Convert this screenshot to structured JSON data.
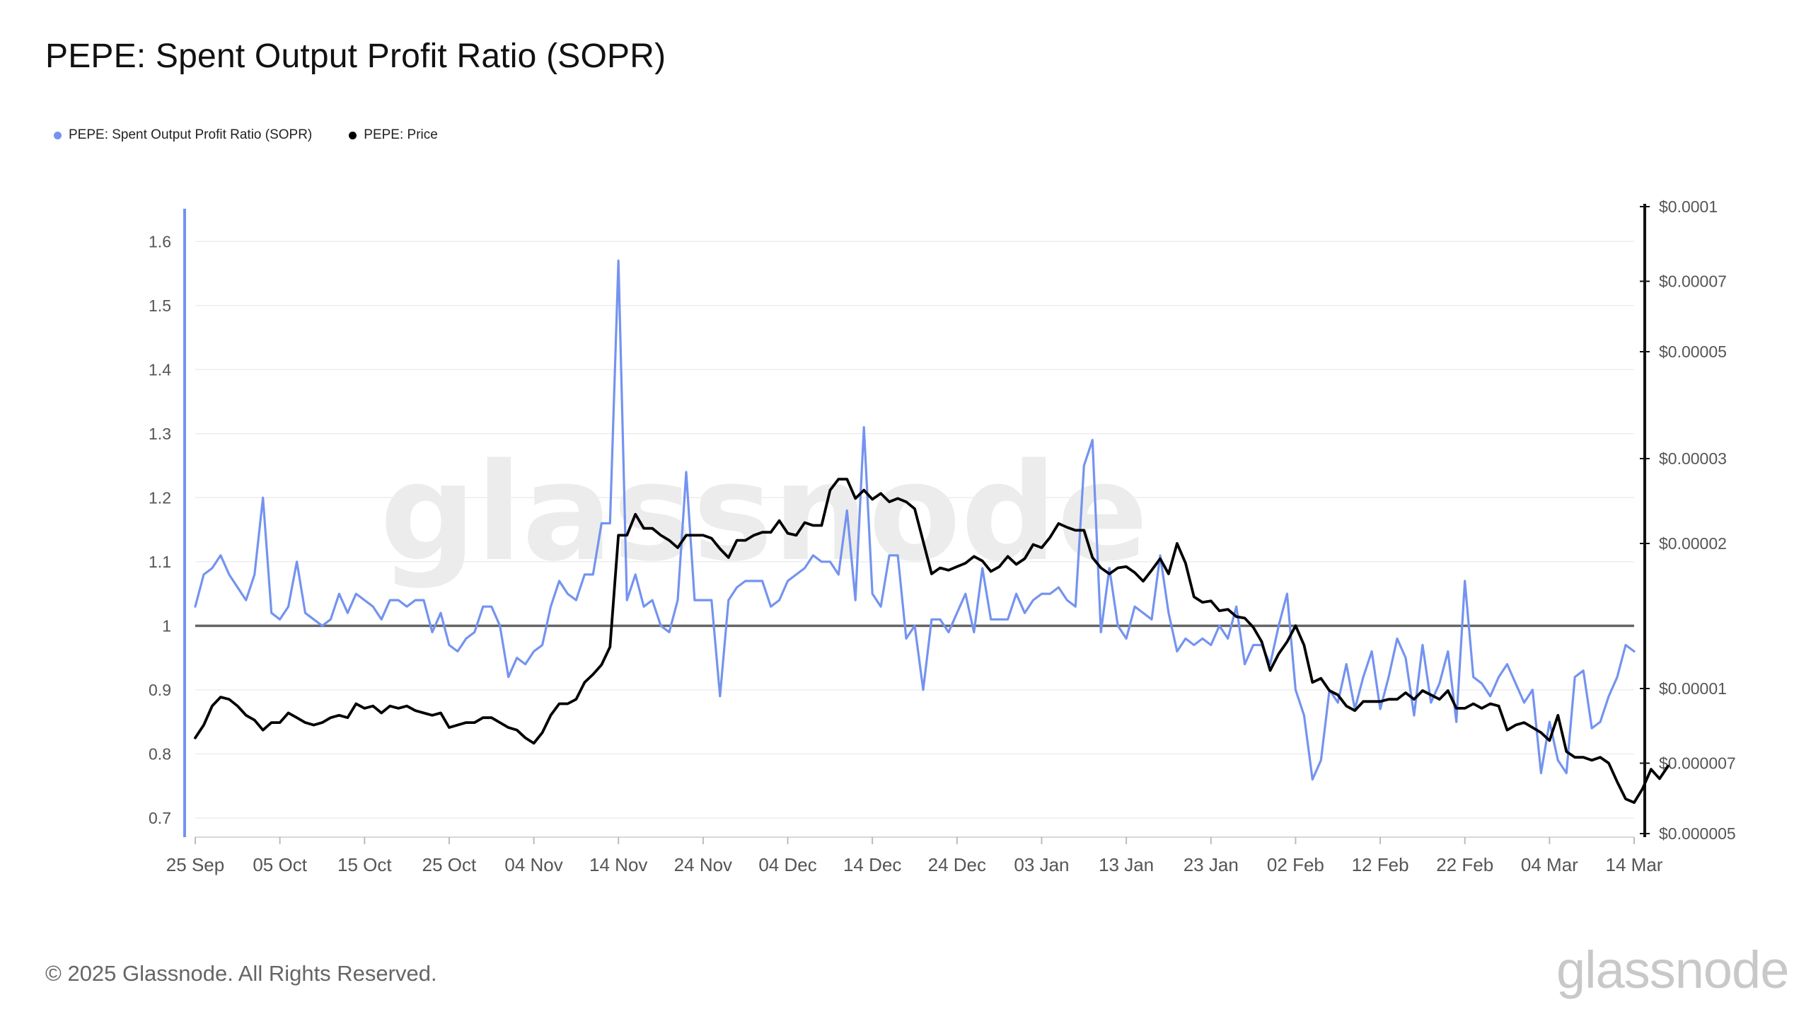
{
  "title": "PEPE: Spent Output Profit Ratio (SOPR)",
  "legend": [
    {
      "label": "PEPE: Spent Output Profit Ratio (SOPR)",
      "color": "#7493f0"
    },
    {
      "label": "PEPE: Price",
      "color": "#000000"
    }
  ],
  "footer": "© 2025 Glassnode. All Rights Reserved.",
  "brand": "glassnode",
  "watermark": "glassnode",
  "chart_data": {
    "type": "line",
    "x_start": "2024-09-25",
    "x_tick_labels": [
      "25 Sep",
      "05 Oct",
      "15 Oct",
      "25 Oct",
      "04 Nov",
      "14 Nov",
      "24 Nov",
      "04 Dec",
      "14 Dec",
      "24 Dec",
      "03 Jan",
      "13 Jan",
      "23 Jan",
      "02 Feb",
      "12 Feb",
      "22 Feb",
      "04 Mar",
      "14 Mar"
    ],
    "y_left": {
      "range": [
        0.67,
        1.65
      ],
      "ticks": [
        1.6,
        1.5,
        1.4,
        1.3,
        1.2,
        1.1,
        1,
        0.9,
        0.8,
        0.7
      ],
      "tick_labels": [
        "1.6",
        "1.5",
        "1.4",
        "1.3",
        "1.2",
        "1.1",
        "1",
        "0.9",
        "0.8",
        "0.7"
      ]
    },
    "y_right": {
      "scale": "log",
      "range": [
        5e-06,
        0.0001
      ],
      "ticks": [
        0.0001,
        7e-05,
        5e-05,
        3e-05,
        2e-05,
        1e-05,
        7e-06,
        5e-06
      ],
      "tick_labels": [
        "$0.0001",
        "$0.00007",
        "$0.00005",
        "$0.00003",
        "$0.00002",
        "$0.00001",
        "$0.000007",
        "$0.000005"
      ]
    },
    "reference_line": 1,
    "grid": true,
    "series": [
      {
        "name": "PEPE: Spent Output Profit Ratio (SOPR)",
        "axis": "left",
        "color": "#7493f0",
        "values": [
          1.03,
          1.08,
          1.09,
          1.11,
          1.08,
          1.06,
          1.04,
          1.08,
          1.2,
          1.02,
          1.01,
          1.03,
          1.1,
          1.02,
          1.01,
          1.0,
          1.01,
          1.05,
          1.02,
          1.05,
          1.04,
          1.03,
          1.01,
          1.04,
          1.04,
          1.03,
          1.04,
          1.04,
          0.99,
          1.02,
          0.97,
          0.96,
          0.98,
          0.99,
          1.03,
          1.03,
          1.0,
          0.92,
          0.95,
          0.94,
          0.96,
          0.97,
          1.03,
          1.07,
          1.05,
          1.04,
          1.08,
          1.08,
          1.16,
          1.16,
          1.57,
          1.04,
          1.08,
          1.03,
          1.04,
          1.0,
          0.99,
          1.04,
          1.24,
          1.04,
          1.04,
          1.04,
          0.89,
          1.04,
          1.06,
          1.07,
          1.07,
          1.07,
          1.03,
          1.04,
          1.07,
          1.08,
          1.09,
          1.11,
          1.1,
          1.1,
          1.08,
          1.18,
          1.04,
          1.31,
          1.05,
          1.03,
          1.11,
          1.11,
          0.98,
          1.0,
          0.9,
          1.01,
          1.01,
          0.99,
          1.02,
          1.05,
          0.99,
          1.09,
          1.01,
          1.01,
          1.01,
          1.05,
          1.02,
          1.04,
          1.05,
          1.05,
          1.06,
          1.04,
          1.03,
          1.25,
          1.29,
          0.99,
          1.09,
          1.0,
          0.98,
          1.03,
          1.02,
          1.01,
          1.11,
          1.02,
          0.96,
          0.98,
          0.97,
          0.98,
          0.97,
          1.0,
          0.98,
          1.03,
          0.94,
          0.97,
          0.97,
          0.94,
          1.0,
          1.05,
          0.9,
          0.86,
          0.76,
          0.79,
          0.9,
          0.88,
          0.94,
          0.87,
          0.92,
          0.96,
          0.87,
          0.92,
          0.98,
          0.95,
          0.86,
          0.97,
          0.88,
          0.91,
          0.96,
          0.85,
          1.07,
          0.92,
          0.91,
          0.89,
          0.92,
          0.94,
          0.91,
          0.88,
          0.9,
          0.77,
          0.85,
          0.79,
          0.77,
          0.92,
          0.93,
          0.84,
          0.85,
          0.89,
          0.92,
          0.97,
          0.96
        ]
      },
      {
        "name": "PEPE: Price",
        "axis": "right",
        "color": "#000000",
        "values": [
          7.9e-06,
          8.4e-06,
          9.2e-06,
          9.6e-06,
          9.5e-06,
          9.2e-06,
          8.8e-06,
          8.6e-06,
          8.2e-06,
          8.5e-06,
          8.5e-06,
          8.9e-06,
          8.7e-06,
          8.5e-06,
          8.4e-06,
          8.5e-06,
          8.7e-06,
          8.8e-06,
          8.7e-06,
          9.3e-06,
          9.1e-06,
          9.2e-06,
          8.9e-06,
          9.2e-06,
          9.1e-06,
          9.2e-06,
          9e-06,
          8.9e-06,
          8.8e-06,
          8.9e-06,
          8.3e-06,
          8.4e-06,
          8.5e-06,
          8.5e-06,
          8.7e-06,
          8.7e-06,
          8.5e-06,
          8.3e-06,
          8.2e-06,
          7.9e-06,
          7.7e-06,
          8.1e-06,
          8.8e-06,
          9.3e-06,
          9.3e-06,
          9.5e-06,
          1.03e-05,
          1.07e-05,
          1.12e-05,
          1.22e-05,
          2.08e-05,
          2.08e-05,
          2.3e-05,
          2.15e-05,
          2.15e-05,
          2.08e-05,
          2.03e-05,
          1.96e-05,
          2.08e-05,
          2.08e-05,
          2.08e-05,
          2.05e-05,
          1.95e-05,
          1.87e-05,
          2.03e-05,
          2.03e-05,
          2.08e-05,
          2.11e-05,
          2.11e-05,
          2.23e-05,
          2.1e-05,
          2.08e-05,
          2.21e-05,
          2.18e-05,
          2.18e-05,
          2.58e-05,
          2.72e-05,
          2.72e-05,
          2.48e-05,
          2.58e-05,
          2.47e-05,
          2.54e-05,
          2.44e-05,
          2.48e-05,
          2.44e-05,
          2.36e-05,
          2.02e-05,
          1.73e-05,
          1.78e-05,
          1.76e-05,
          1.79e-05,
          1.82e-05,
          1.88e-05,
          1.84e-05,
          1.75e-05,
          1.79e-05,
          1.88e-05,
          1.81e-05,
          1.86e-05,
          1.99e-05,
          1.96e-05,
          2.06e-05,
          2.2e-05,
          2.16e-05,
          2.13e-05,
          2.13e-05,
          1.87e-05,
          1.78e-05,
          1.73e-05,
          1.78e-05,
          1.79e-05,
          1.74e-05,
          1.67e-05,
          1.76e-05,
          1.86e-05,
          1.73e-05,
          2e-05,
          1.82e-05,
          1.55e-05,
          1.51e-05,
          1.52e-05,
          1.45e-05,
          1.46e-05,
          1.41e-05,
          1.4e-05,
          1.34e-05,
          1.25e-05,
          1.09e-05,
          1.18e-05,
          1.25e-05,
          1.35e-05,
          1.23e-05,
          1.03e-05,
          1.05e-05,
          9.9e-06,
          9.7e-06,
          9.2e-06,
          9e-06,
          9.4e-06,
          9.4e-06,
          9.4e-06,
          9.5e-06,
          9.5e-06,
          9.8e-06,
          9.5e-06,
          9.9e-06,
          9.7e-06,
          9.5e-06,
          9.9e-06,
          9.1e-06,
          9.1e-06,
          9.3e-06,
          9.1e-06,
          9.3e-06,
          9.2e-06,
          8.2e-06,
          8.4e-06,
          8.5e-06,
          8.3e-06,
          8.1e-06,
          7.8e-06,
          8.8e-06,
          7.4e-06,
          7.2e-06,
          7.2e-06,
          7.1e-06,
          7.2e-06,
          7e-06,
          6.4e-06,
          5.9e-06,
          5.8e-06,
          6.2e-06,
          6.8e-06,
          6.5e-06,
          6.9e-06
        ]
      }
    ]
  }
}
